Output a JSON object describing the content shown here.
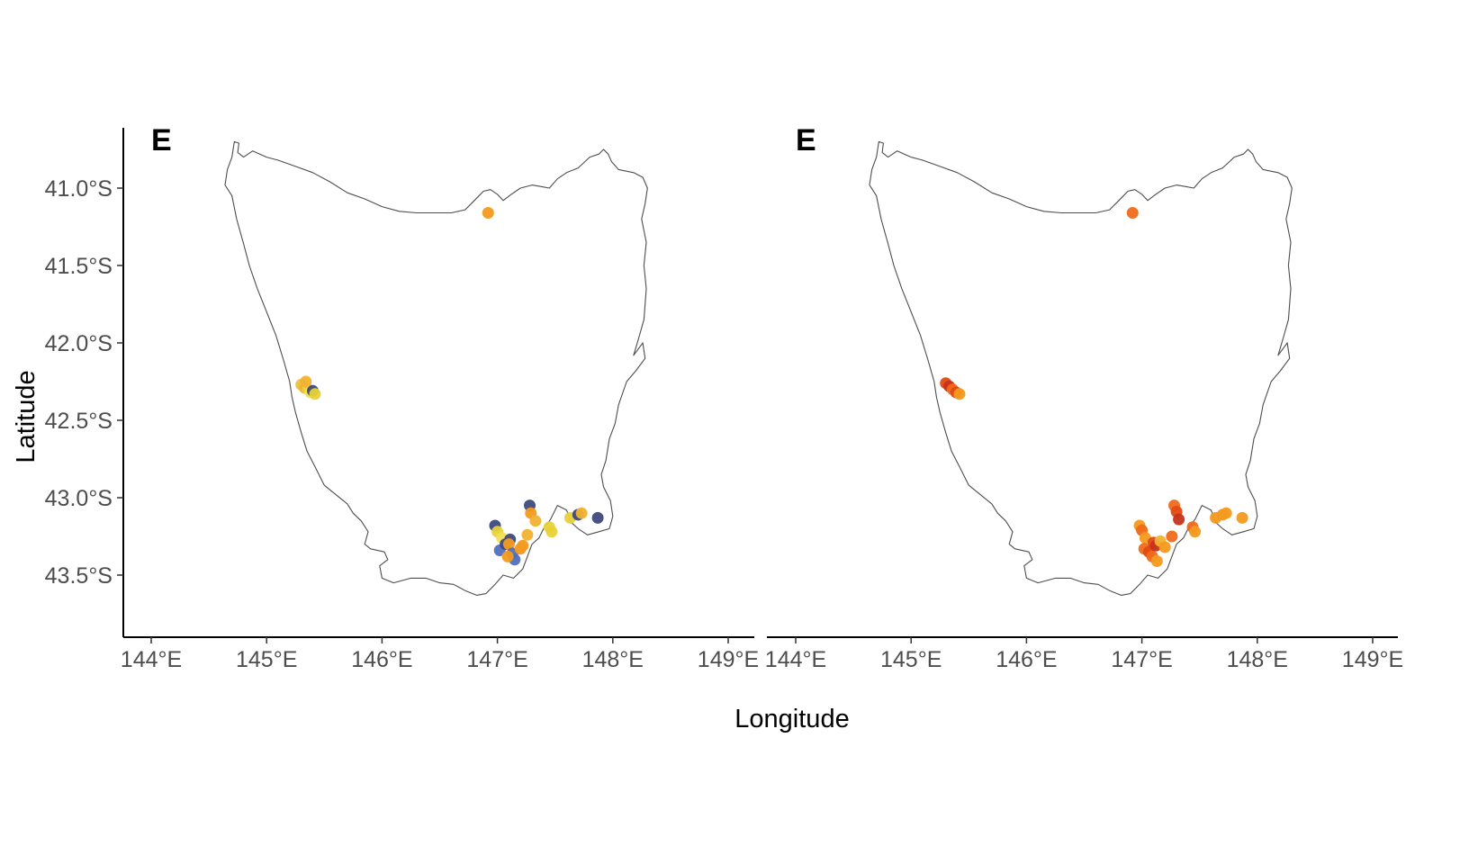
{
  "axis_labels": {
    "x": "Longitude",
    "y": "Latitude"
  },
  "chart_data": [
    {
      "type": "scatter",
      "panel_tag": "E",
      "xlabel": "Longitude",
      "ylabel": "Latitude",
      "xlim": [
        143.9,
        149.1
      ],
      "ylim": [
        -43.9,
        -40.6
      ],
      "x_ticks": [
        144,
        145,
        146,
        147,
        148,
        149
      ],
      "x_tick_labels": [
        "144°E",
        "145°E",
        "146°E",
        "147°E",
        "148°E",
        "149°E"
      ],
      "y_ticks": [
        -41.0,
        -41.5,
        -42.0,
        -42.5,
        -43.0,
        -43.5
      ],
      "y_tick_labels": [
        "41.0°S",
        "41.5°S",
        "42.0°S",
        "42.5°S",
        "43.0°S",
        "43.5°S"
      ],
      "grid": false,
      "legend": "none",
      "colors": {
        "dark_navy": "#3d4a7e",
        "blue": "#4f6fbf",
        "yellow": "#e8d23a",
        "light_yellow": "#f0e05a",
        "orange": "#f39a1e",
        "amber": "#f2b233"
      },
      "points": [
        {
          "lon": 146.92,
          "lat": -41.16,
          "color": "#f39a1e"
        },
        {
          "lon": 145.3,
          "lat": -42.27,
          "color": "#e8c43a"
        },
        {
          "lon": 145.33,
          "lat": -42.29,
          "color": "#f2b233"
        },
        {
          "lon": 145.36,
          "lat": -42.3,
          "color": "#e8d23a"
        },
        {
          "lon": 145.38,
          "lat": -42.32,
          "color": "#f0e05a"
        },
        {
          "lon": 145.4,
          "lat": -42.31,
          "color": "#3d4a7e"
        },
        {
          "lon": 145.42,
          "lat": -42.33,
          "color": "#e8d23a"
        },
        {
          "lon": 145.34,
          "lat": -42.25,
          "color": "#f2b233"
        },
        {
          "lon": 146.98,
          "lat": -43.18,
          "color": "#3d4a7e"
        },
        {
          "lon": 147.0,
          "lat": -43.22,
          "color": "#e8d23a"
        },
        {
          "lon": 147.04,
          "lat": -43.26,
          "color": "#f0e05a"
        },
        {
          "lon": 147.02,
          "lat": -43.34,
          "color": "#4f6fbf"
        },
        {
          "lon": 147.07,
          "lat": -43.3,
          "color": "#3d4a7e"
        },
        {
          "lon": 147.11,
          "lat": -43.27,
          "color": "#3d4a7e"
        },
        {
          "lon": 147.1,
          "lat": -43.3,
          "color": "#f39a1e"
        },
        {
          "lon": 147.13,
          "lat": -43.36,
          "color": "#4f6fbf"
        },
        {
          "lon": 147.15,
          "lat": -43.4,
          "color": "#4f6fbf"
        },
        {
          "lon": 147.09,
          "lat": -43.38,
          "color": "#f39a1e"
        },
        {
          "lon": 147.2,
          "lat": -43.33,
          "color": "#f39a1e"
        },
        {
          "lon": 147.22,
          "lat": -43.31,
          "color": "#f39a1e"
        },
        {
          "lon": 147.26,
          "lat": -43.24,
          "color": "#f2b233"
        },
        {
          "lon": 147.28,
          "lat": -43.05,
          "color": "#3d4a7e"
        },
        {
          "lon": 147.29,
          "lat": -43.1,
          "color": "#f39a1e"
        },
        {
          "lon": 147.33,
          "lat": -43.15,
          "color": "#f2b233"
        },
        {
          "lon": 147.45,
          "lat": -43.19,
          "color": "#e8d23a"
        },
        {
          "lon": 147.47,
          "lat": -43.22,
          "color": "#e8d23a"
        },
        {
          "lon": 147.63,
          "lat": -43.13,
          "color": "#e8d23a"
        },
        {
          "lon": 147.7,
          "lat": -43.11,
          "color": "#3d4a7e"
        },
        {
          "lon": 147.73,
          "lat": -43.1,
          "color": "#f2b233"
        },
        {
          "lon": 147.87,
          "lat": -43.13,
          "color": "#3d4a7e"
        }
      ]
    },
    {
      "type": "scatter",
      "panel_tag": "E",
      "xlabel": "Longitude",
      "ylabel": "Latitude",
      "xlim": [
        143.9,
        149.1
      ],
      "ylim": [
        -43.9,
        -40.6
      ],
      "x_ticks": [
        144,
        145,
        146,
        147,
        148,
        149
      ],
      "x_tick_labels": [
        "144°E",
        "145°E",
        "146°E",
        "147°E",
        "148°E",
        "149°E"
      ],
      "grid": false,
      "legend": "none",
      "colors": {
        "red": "#c8321a",
        "red_orange": "#e04a14",
        "orange": "#ef6a1a",
        "light_orange": "#f39a1e"
      },
      "points": [
        {
          "lon": 146.92,
          "lat": -41.16,
          "color": "#ef6a1a"
        },
        {
          "lon": 145.3,
          "lat": -42.26,
          "color": "#e04a14"
        },
        {
          "lon": 145.33,
          "lat": -42.28,
          "color": "#c8321a"
        },
        {
          "lon": 145.36,
          "lat": -42.3,
          "color": "#ef6a1a"
        },
        {
          "lon": 145.39,
          "lat": -42.32,
          "color": "#e04a14"
        },
        {
          "lon": 145.42,
          "lat": -42.33,
          "color": "#f39a1e"
        },
        {
          "lon": 146.98,
          "lat": -43.18,
          "color": "#f39a1e"
        },
        {
          "lon": 147.0,
          "lat": -43.21,
          "color": "#ef6a1a"
        },
        {
          "lon": 147.03,
          "lat": -43.26,
          "color": "#f39a1e"
        },
        {
          "lon": 147.02,
          "lat": -43.33,
          "color": "#ef6a1a"
        },
        {
          "lon": 147.06,
          "lat": -43.35,
          "color": "#e04a14"
        },
        {
          "lon": 147.1,
          "lat": -43.29,
          "color": "#e04a14"
        },
        {
          "lon": 147.12,
          "lat": -43.31,
          "color": "#c8321a"
        },
        {
          "lon": 147.09,
          "lat": -43.38,
          "color": "#ef6a1a"
        },
        {
          "lon": 147.13,
          "lat": -43.41,
          "color": "#f39a1e"
        },
        {
          "lon": 147.16,
          "lat": -43.28,
          "color": "#f2b233"
        },
        {
          "lon": 147.2,
          "lat": -43.32,
          "color": "#f39a1e"
        },
        {
          "lon": 147.26,
          "lat": -43.25,
          "color": "#ef6a1a"
        },
        {
          "lon": 147.28,
          "lat": -43.05,
          "color": "#ef6a1a"
        },
        {
          "lon": 147.3,
          "lat": -43.09,
          "color": "#e04a14"
        },
        {
          "lon": 147.32,
          "lat": -43.14,
          "color": "#c8321a"
        },
        {
          "lon": 147.44,
          "lat": -43.19,
          "color": "#ef6a1a"
        },
        {
          "lon": 147.46,
          "lat": -43.22,
          "color": "#f39a1e"
        },
        {
          "lon": 147.64,
          "lat": -43.13,
          "color": "#f39a1e"
        },
        {
          "lon": 147.7,
          "lat": -43.11,
          "color": "#f39a1e"
        },
        {
          "lon": 147.73,
          "lat": -43.1,
          "color": "#f39a1e"
        },
        {
          "lon": 147.87,
          "lat": -43.13,
          "color": "#f39a1e"
        }
      ]
    }
  ]
}
